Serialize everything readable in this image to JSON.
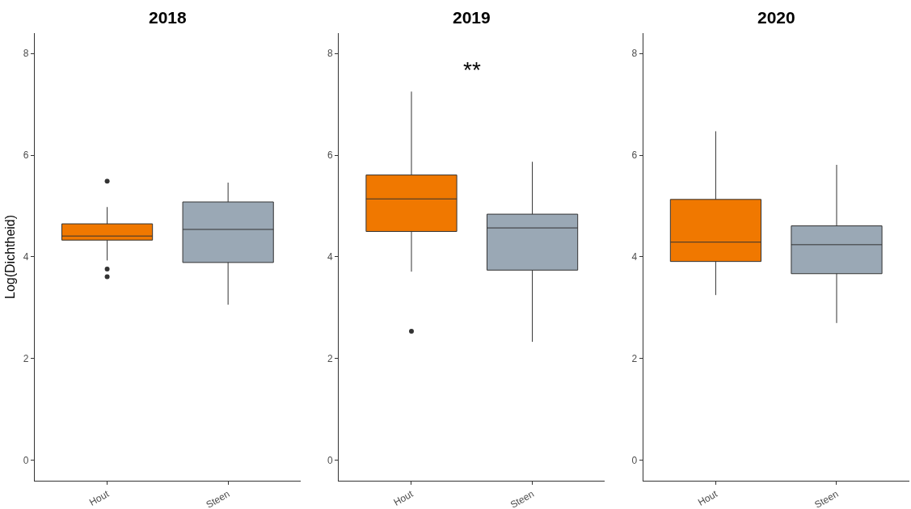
{
  "chart_data": [
    {
      "type": "box",
      "title": "2018",
      "ylabel": "Log(Dichtheid)",
      "categories": [
        "Hout",
        "Steen"
      ],
      "colors": [
        "#f07800",
        "#9aa8b5"
      ],
      "boxes": [
        {
          "low": 3.93,
          "q1": 4.33,
          "median": 4.41,
          "q3": 4.65,
          "high": 4.98,
          "outliers": [
            5.49,
            3.76,
            3.61
          ]
        },
        {
          "low": 3.06,
          "q1": 3.89,
          "median": 4.54,
          "q3": 5.08,
          "high": 5.46
        }
      ],
      "ylim": [
        -0.4,
        8.4
      ],
      "yticks": [
        0,
        2,
        4,
        6,
        8
      ],
      "grid": false,
      "legend": false
    },
    {
      "type": "box",
      "title": "2019",
      "categories": [
        "Hout",
        "Steen"
      ],
      "colors": [
        "#f07800",
        "#9aa8b5"
      ],
      "boxes": [
        {
          "low": 3.71,
          "q1": 4.5,
          "median": 5.14,
          "q3": 5.61,
          "high": 7.25,
          "outliers": [
            2.54
          ]
        },
        {
          "low": 2.33,
          "q1": 3.74,
          "median": 4.57,
          "q3": 4.84,
          "high": 5.87
        }
      ],
      "ylim": [
        -0.4,
        8.4
      ],
      "yticks": [
        0,
        2,
        4,
        6,
        8
      ],
      "grid": false,
      "legend": false,
      "annotations": [
        "**"
      ]
    },
    {
      "type": "box",
      "title": "2020",
      "categories": [
        "Hout",
        "Steen"
      ],
      "colors": [
        "#f07800",
        "#9aa8b5"
      ],
      "boxes": [
        {
          "low": 3.25,
          "q1": 3.91,
          "median": 4.29,
          "q3": 5.13,
          "high": 6.47
        },
        {
          "low": 2.7,
          "q1": 3.67,
          "median": 4.24,
          "q3": 4.61,
          "high": 5.81
        }
      ],
      "ylim": [
        -0.4,
        8.4
      ],
      "yticks": [
        0,
        2,
        4,
        6,
        8
      ],
      "grid": false,
      "legend": false
    }
  ]
}
